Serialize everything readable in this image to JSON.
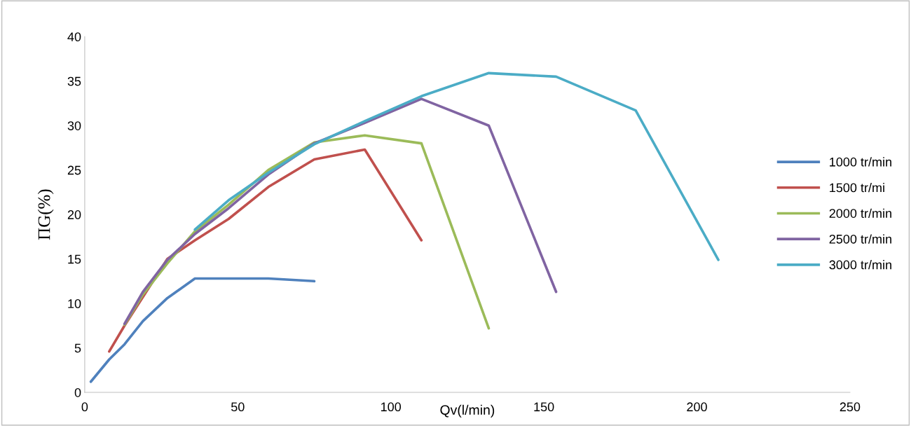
{
  "chart_data": {
    "type": "line",
    "xlabel": "Qv(l/min)",
    "ylabel": "ΠG(%)",
    "xlim": [
      0,
      250
    ],
    "xticks": [
      0,
      50,
      100,
      150,
      200,
      250
    ],
    "ylim": [
      0,
      40
    ],
    "yticks": [
      0,
      5,
      10,
      15,
      20,
      25,
      30,
      35,
      40
    ],
    "grid": false,
    "legend": "right",
    "marker": "none",
    "line_style": "solid",
    "series": [
      {
        "name": "1000 tr/min",
        "color": "#4f81bd",
        "x": [
          2,
          8,
          13,
          19,
          27,
          36,
          60,
          75
        ],
        "values": [
          1.2,
          3.7,
          5.4,
          8.0,
          10.6,
          12.8,
          12.8,
          12.5
        ]
      },
      {
        "name": "1500 tr/mi",
        "color": "#c0504d",
        "x": [
          8,
          13,
          27,
          36,
          47,
          60,
          75,
          91.5,
          110
        ],
        "values": [
          4.6,
          7.5,
          15.0,
          17.1,
          19.5,
          23.1,
          26.2,
          27.3,
          17.1
        ]
      },
      {
        "name": "2000 tr/min",
        "color": "#9bbb59",
        "x": [
          13,
          19,
          27,
          36,
          47,
          60,
          75,
          91.5,
          110,
          132
        ],
        "values": [
          7.6,
          11.0,
          14.5,
          18.1,
          21.1,
          25.0,
          28.1,
          28.9,
          28.0,
          7.2
        ]
      },
      {
        "name": "2500 tr/min",
        "color": "#8064a2",
        "x": [
          13,
          19,
          27,
          36,
          47,
          60,
          75,
          91.5,
          110,
          132,
          154
        ],
        "values": [
          7.7,
          11.3,
          14.9,
          17.8,
          20.7,
          24.5,
          28.0,
          30.3,
          33.0,
          30.0,
          11.3
        ]
      },
      {
        "name": "3000 tr/min",
        "color": "#4bacc6",
        "x": [
          36,
          47,
          60,
          75,
          91.5,
          110,
          132,
          154,
          180,
          207
        ],
        "values": [
          18.3,
          21.6,
          24.7,
          27.9,
          30.5,
          33.3,
          35.9,
          35.5,
          31.7,
          14.9
        ]
      }
    ]
  }
}
